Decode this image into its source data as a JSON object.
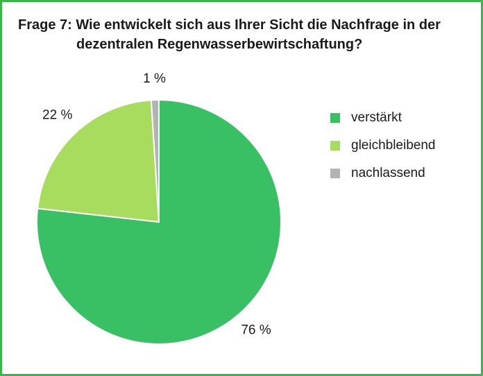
{
  "title": {
    "line1": "Frage 7: Wie entwickelt sich aus Ihrer Sicht die Nachfrage in der",
    "line2": "dezentralen Regenwasserbewirtschaftung?"
  },
  "chart_data": {
    "type": "pie",
    "title": "Frage 7: Wie entwickelt sich aus Ihrer Sicht die Nachfrage in der dezentralen Regenwasserbewirtschaftung?",
    "labels": [
      "verstärkt",
      "gleichbleibend",
      "nachlassend"
    ],
    "values": [
      76,
      22,
      1
    ],
    "data_labels": [
      "76 %",
      "22 %",
      "1 %"
    ],
    "colors": [
      "#3ac064",
      "#a8dc5e",
      "#b3b3b3"
    ],
    "legend": "right",
    "unit": "%"
  },
  "colors": {
    "border": "#3ab54a",
    "slice_edge": "#ffffff"
  }
}
